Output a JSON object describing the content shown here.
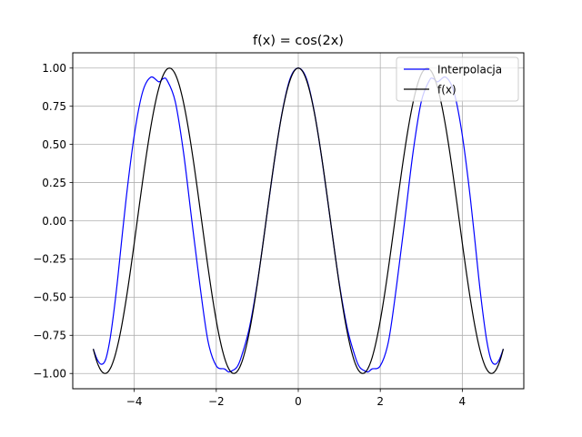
{
  "chart_data": {
    "type": "line",
    "title": "f(x) = cos(2x)",
    "xlabel": "",
    "ylabel": "",
    "xlim": [
      -5.5,
      5.5
    ],
    "ylim": [
      -1.1,
      1.1
    ],
    "xticks": [
      -4,
      -2,
      0,
      2,
      4
    ],
    "xtick_labels": [
      "−4",
      "−2",
      "0",
      "2",
      "4"
    ],
    "yticks": [
      -1.0,
      -0.75,
      -0.5,
      -0.25,
      0.0,
      0.25,
      0.5,
      0.75,
      1.0
    ],
    "ytick_labels": [
      "−1.00",
      "−0.75",
      "−0.50",
      "−0.25",
      "0.00",
      "0.25",
      "0.50",
      "0.75",
      "1.00"
    ],
    "grid": true,
    "legend_position": "top-right",
    "series": [
      {
        "name": "Interpolacja",
        "color": "#0000ff",
        "x": [
          -5.0,
          -4.9,
          -4.8,
          -4.7,
          -4.6,
          -4.5,
          -4.4,
          -4.2,
          -4.0,
          -3.8,
          -3.6,
          -3.4,
          -3.3,
          -3.2,
          -3.0,
          -2.8,
          -2.6,
          -2.4,
          -2.2,
          -2.0,
          -1.8,
          -1.7,
          -1.6,
          -1.5,
          -1.4,
          -1.2,
          -1.0,
          -0.8,
          -0.6,
          -0.4,
          -0.2,
          0.0,
          0.2,
          0.4,
          0.6,
          0.8,
          1.0,
          1.2,
          1.4,
          1.5,
          1.6,
          1.7,
          1.8,
          2.0,
          2.2,
          2.4,
          2.6,
          2.8,
          3.0,
          3.2,
          3.3,
          3.4,
          3.6,
          3.8,
          4.0,
          4.2,
          4.4,
          4.5,
          4.6,
          4.7,
          4.8,
          4.9,
          5.0
        ],
        "y": [
          -0.84,
          -0.91,
          -0.94,
          -0.91,
          -0.79,
          -0.6,
          -0.37,
          0.14,
          0.56,
          0.84,
          0.94,
          0.91,
          0.93,
          0.92,
          0.78,
          0.45,
          0.01,
          -0.42,
          -0.79,
          -0.95,
          -0.97,
          -0.99,
          -0.98,
          -0.96,
          -0.9,
          -0.71,
          -0.41,
          -0.03,
          0.36,
          0.7,
          0.93,
          1.0,
          0.93,
          0.7,
          0.36,
          -0.03,
          -0.41,
          -0.71,
          -0.9,
          -0.96,
          -0.98,
          -0.99,
          -0.97,
          -0.95,
          -0.79,
          -0.42,
          0.01,
          0.45,
          0.78,
          0.92,
          0.93,
          0.91,
          0.94,
          0.84,
          0.56,
          0.14,
          -0.37,
          -0.6,
          -0.79,
          -0.91,
          -0.94,
          -0.91,
          -0.84
        ]
      },
      {
        "name": "f(x)",
        "color": "#000000",
        "function": "cos(2x)",
        "x_range": [
          -5.0,
          5.0
        ]
      }
    ]
  }
}
